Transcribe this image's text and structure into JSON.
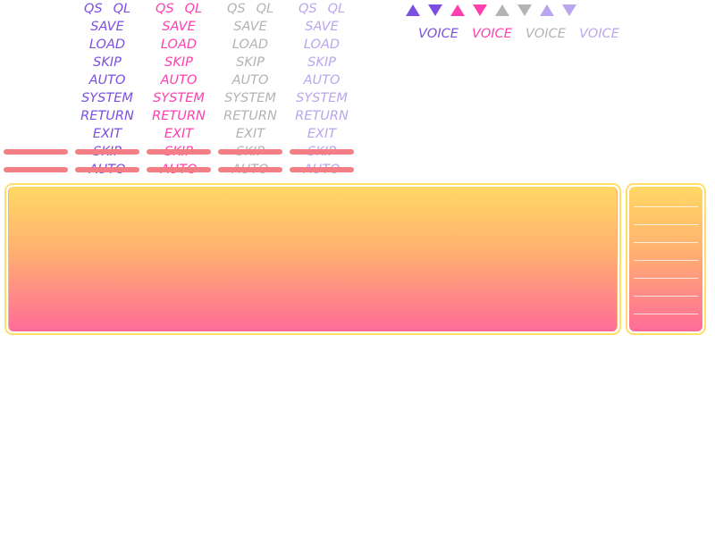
{
  "menu_labels": {
    "qs": "QS",
    "ql": "QL",
    "save": "SAVE",
    "load": "LOAD",
    "skip": "SKIP",
    "auto": "AUTO",
    "system": "SYSTEM",
    "return": "RETURN",
    "exit": "EXIT"
  },
  "voice_labels": [
    "VOICE",
    "VOICE",
    "VOICE",
    "VOICE"
  ],
  "colors": {
    "purple": "#7b4fe0",
    "pink": "#ff3fae",
    "gray": "#b3b3b3",
    "lavender": "#b9a6ee",
    "strip": "#f47e85",
    "window_border": "#ffde6a",
    "gradient_top": "#ffd964",
    "gradient_bottom": "#ff6c98"
  },
  "triangle_icons": [
    "arrow-up-icon",
    "arrow-down-icon",
    "arrow-up-icon",
    "arrow-down-icon",
    "arrow-up-icon",
    "arrow-down-icon",
    "arrow-up-icon",
    "arrow-down-icon"
  ]
}
